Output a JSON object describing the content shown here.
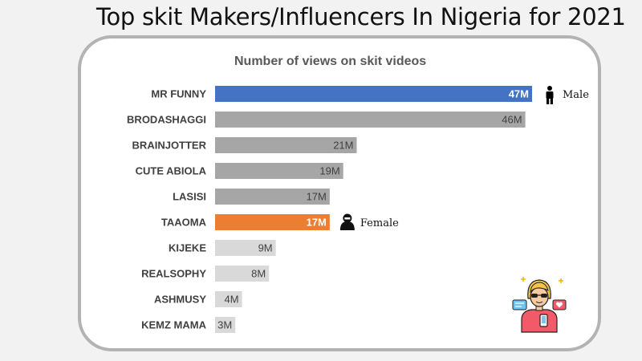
{
  "page": {
    "title": "Top skit Makers/Influencers In Nigeria for 2021"
  },
  "chart_data": {
    "type": "bar",
    "orientation": "horizontal",
    "title": "Number of views on skit videos",
    "xlabel": "",
    "ylabel": "",
    "unit": "M",
    "categories": [
      "MR FUNNY",
      "BRODASHAGGI",
      "BRAINJOTTER",
      "CUTE ABIOLA",
      "LASISI",
      "TAAOMA",
      "KIJEKE",
      "REALSOPHY",
      "ASHMUSY",
      "KEMZ MAMA"
    ],
    "values": [
      47,
      46,
      21,
      19,
      17,
      17,
      9,
      8,
      4,
      3
    ],
    "value_labels": [
      "47M",
      "46M",
      "21M",
      "19M",
      "17M",
      "17M",
      "9M",
      "8M",
      "4M",
      "3M"
    ],
    "colors": [
      "#4472c4",
      "#a6a6a6",
      "#a6a6a6",
      "#a6a6a6",
      "#a6a6a6",
      "#ed7d31",
      "#d9d9d9",
      "#d9d9d9",
      "#d9d9d9",
      "#d9d9d9"
    ],
    "label_colors": [
      "#ffffff",
      "#404040",
      "#404040",
      "#404040",
      "#404040",
      "#ffffff",
      "#404040",
      "#404040",
      "#404040",
      "#404040"
    ],
    "label_bold": [
      true,
      false,
      false,
      false,
      false,
      true,
      false,
      false,
      false,
      false
    ],
    "xlim": [
      0,
      47
    ],
    "grid": false,
    "annotations": [
      {
        "bar": 0,
        "icon": "male-person-icon",
        "text": "Male"
      },
      {
        "bar": 5,
        "icon": "female-person-icon",
        "text": "Female"
      }
    ],
    "decoration_icon": "influencer-illustration-icon"
  }
}
